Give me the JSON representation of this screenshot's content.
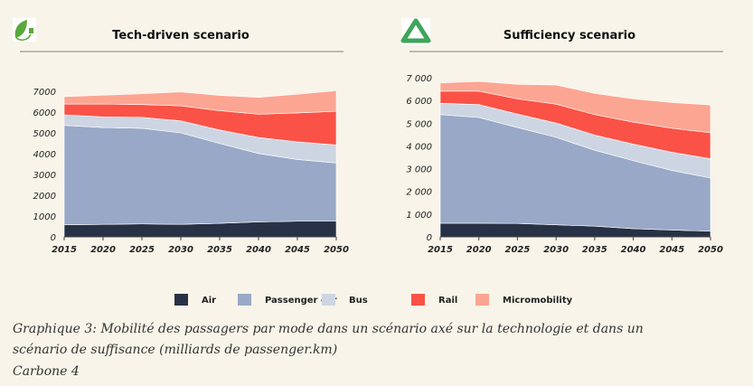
{
  "colors": {
    "Air": "#283246",
    "Passenger car": "#98a8c6",
    "Bus": "#cdd5e3",
    "Rail": "#fa5246",
    "Micromobility": "#fca592"
  },
  "logos": {
    "left": "leaf-plug-icon",
    "right": "recycle-icon"
  },
  "chart_data": [
    {
      "type": "area",
      "stacked": true,
      "title": "Tech-driven scenario",
      "x": [
        2015,
        2020,
        2025,
        2030,
        2035,
        2040,
        2045,
        2050
      ],
      "ylim": [
        0,
        7000
      ],
      "yticks": [
        "0",
        "1000",
        "2000",
        "3000",
        "4000",
        "5000",
        "6000",
        "7000"
      ],
      "grid": false,
      "series": [
        {
          "name": "Air",
          "values": [
            580,
            600,
            620,
            600,
            650,
            720,
            750,
            750
          ]
        },
        {
          "name": "Passenger car",
          "values": [
            4780,
            4660,
            4600,
            4400,
            3840,
            3290,
            2970,
            2800
          ]
        },
        {
          "name": "Bus",
          "values": [
            510,
            510,
            530,
            580,
            650,
            770,
            850,
            870
          ]
        },
        {
          "name": "Rail",
          "values": [
            520,
            620,
            610,
            720,
            930,
            1120,
            1390,
            1620
          ]
        },
        {
          "name": "Micromobility",
          "values": [
            350,
            420,
            520,
            670,
            730,
            810,
            900,
            990
          ]
        }
      ]
    },
    {
      "type": "area",
      "stacked": true,
      "title": "Sufficiency scenario",
      "x": [
        2015,
        2020,
        2025,
        2030,
        2035,
        2040,
        2045,
        2050
      ],
      "ylim": [
        0,
        7000
      ],
      "yticks": [
        "0",
        "1 000",
        "2 000",
        "3 000",
        "4 000",
        "5 000",
        "6 000",
        "7 000"
      ],
      "grid": false,
      "series": [
        {
          "name": "Air",
          "values": [
            600,
            600,
            590,
            530,
            470,
            360,
            300,
            250
          ]
        },
        {
          "name": "Passenger car",
          "values": [
            4780,
            4650,
            4220,
            3850,
            3340,
            2990,
            2620,
            2340
          ]
        },
        {
          "name": "Bus",
          "values": [
            500,
            570,
            590,
            630,
            670,
            730,
            800,
            850
          ]
        },
        {
          "name": "Rail",
          "values": [
            530,
            590,
            670,
            830,
            900,
            970,
            1060,
            1140
          ]
        },
        {
          "name": "Micromobility",
          "values": [
            360,
            430,
            640,
            840,
            930,
            1020,
            1130,
            1220
          ]
        }
      ]
    }
  ],
  "legend": [
    "Air",
    "Passenger car",
    "Bus",
    "Rail",
    "Micromobility"
  ],
  "caption": {
    "line1": "Graphique 3: Mobilité des passagers par mode dans un scénario axé sur la technologie et dans un",
    "line2": "scénario de suffisance (milliards de passenger.km)",
    "source": "Carbone 4"
  }
}
